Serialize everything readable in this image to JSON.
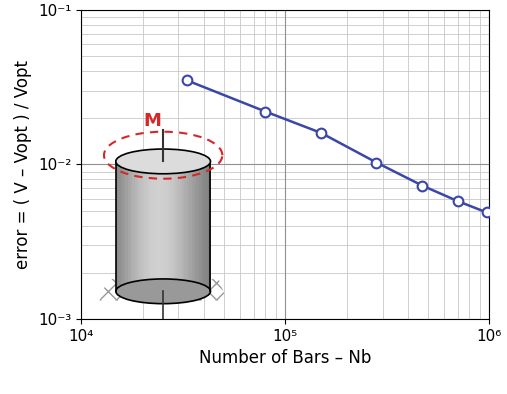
{
  "chart_data": {
    "type": "line",
    "x_label": "Number of Bars – Nb",
    "y_label": "error = ( V – Vopt ) / Vopt",
    "annotation": "M",
    "x": [
      33000,
      80000,
      150000,
      280000,
      470000,
      700000,
      970000
    ],
    "series": [
      {
        "name": "error",
        "color": "#3a47a8",
        "marker": "o",
        "line_style": "solid",
        "values": [
          0.035,
          0.022,
          0.016,
          0.0103,
          0.0073,
          0.0058,
          0.0049
        ]
      }
    ],
    "log": true,
    "grid": true,
    "xlim": [
      10000,
      1000000
    ],
    "xticks": [
      {
        "value": 10000,
        "label": "10⁴"
      },
      {
        "value": 100000,
        "label": "10⁵"
      },
      {
        "value": 1000000,
        "label": "10⁶"
      }
    ],
    "ylim": [
      0.001,
      0.1
    ],
    "yticks": [
      {
        "value": 0.001,
        "label": "10⁻³"
      },
      {
        "value": 0.01,
        "label": "10⁻²"
      },
      {
        "value": 0.1,
        "label": "10⁻¹"
      }
    ]
  }
}
